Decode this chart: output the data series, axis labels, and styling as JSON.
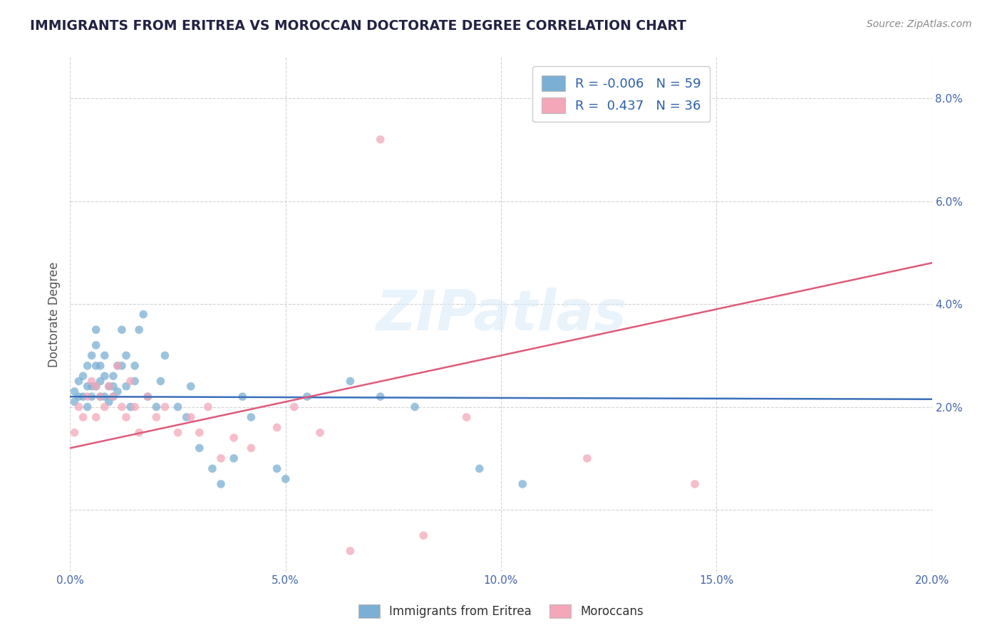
{
  "title": "IMMIGRANTS FROM ERITREA VS MOROCCAN DOCTORATE DEGREE CORRELATION CHART",
  "source_text": "Source: ZipAtlas.com",
  "ylabel": "Doctorate Degree",
  "xlim": [
    0.0,
    0.2
  ],
  "ylim": [
    -0.012,
    0.088
  ],
  "xticks": [
    0.0,
    0.05,
    0.1,
    0.15,
    0.2
  ],
  "xticklabels": [
    "0.0%",
    "5.0%",
    "10.0%",
    "15.0%",
    "20.0%"
  ],
  "yticks": [
    0.0,
    0.02,
    0.04,
    0.06,
    0.08
  ],
  "yticklabels": [
    "",
    "2.0%",
    "4.0%",
    "6.0%",
    "8.0%"
  ],
  "blue_color": "#7bafd4",
  "pink_color": "#f4a7b9",
  "blue_line_color": "#3a6fba",
  "pink_line_color": "#e05a7a",
  "legend_r_blue": "-0.006",
  "legend_n_blue": "59",
  "legend_r_pink": "0.437",
  "legend_n_pink": "36",
  "background_color": "#ffffff",
  "legend_text_color": "#2b5fa8",
  "title_color": "#222244",
  "grid_color": "#c8c8c8",
  "tick_color": "#4466aa",
  "bottom_legend_labels": [
    "Immigrants from Eritrea",
    "Moroccans"
  ],
  "blue_scatter_x": [
    0.001,
    0.001,
    0.002,
    0.002,
    0.003,
    0.003,
    0.004,
    0.004,
    0.004,
    0.005,
    0.005,
    0.005,
    0.006,
    0.006,
    0.006,
    0.006,
    0.007,
    0.007,
    0.007,
    0.008,
    0.008,
    0.008,
    0.009,
    0.009,
    0.01,
    0.01,
    0.01,
    0.011,
    0.011,
    0.012,
    0.012,
    0.013,
    0.013,
    0.014,
    0.015,
    0.015,
    0.016,
    0.017,
    0.018,
    0.02,
    0.021,
    0.022,
    0.025,
    0.027,
    0.028,
    0.03,
    0.033,
    0.035,
    0.038,
    0.04,
    0.042,
    0.048,
    0.05,
    0.055,
    0.065,
    0.072,
    0.08,
    0.095,
    0.105
  ],
  "blue_scatter_y": [
    0.023,
    0.021,
    0.025,
    0.022,
    0.026,
    0.022,
    0.028,
    0.024,
    0.02,
    0.03,
    0.024,
    0.022,
    0.035,
    0.032,
    0.028,
    0.024,
    0.028,
    0.025,
    0.022,
    0.03,
    0.026,
    0.022,
    0.024,
    0.021,
    0.026,
    0.024,
    0.022,
    0.028,
    0.023,
    0.035,
    0.028,
    0.03,
    0.024,
    0.02,
    0.028,
    0.025,
    0.035,
    0.038,
    0.022,
    0.02,
    0.025,
    0.03,
    0.02,
    0.018,
    0.024,
    0.012,
    0.008,
    0.005,
    0.01,
    0.022,
    0.018,
    0.008,
    0.006,
    0.022,
    0.025,
    0.022,
    0.02,
    0.008,
    0.005
  ],
  "pink_scatter_x": [
    0.001,
    0.002,
    0.003,
    0.004,
    0.005,
    0.006,
    0.006,
    0.007,
    0.008,
    0.009,
    0.01,
    0.011,
    0.012,
    0.013,
    0.014,
    0.015,
    0.016,
    0.018,
    0.02,
    0.022,
    0.025,
    0.028,
    0.03,
    0.032,
    0.035,
    0.038,
    0.042,
    0.048,
    0.052,
    0.058,
    0.065,
    0.072,
    0.082,
    0.092,
    0.12,
    0.145
  ],
  "pink_scatter_y": [
    0.015,
    0.02,
    0.018,
    0.022,
    0.025,
    0.018,
    0.024,
    0.022,
    0.02,
    0.024,
    0.022,
    0.028,
    0.02,
    0.018,
    0.025,
    0.02,
    0.015,
    0.022,
    0.018,
    0.02,
    0.015,
    0.018,
    0.015,
    0.02,
    0.01,
    0.014,
    0.012,
    0.016,
    0.02,
    0.015,
    -0.008,
    0.072,
    -0.005,
    0.018,
    0.01,
    0.005
  ],
  "blue_line_x": [
    0.0,
    0.2
  ],
  "blue_line_y": [
    0.022,
    0.0215
  ],
  "pink_line_x": [
    0.0,
    0.2
  ],
  "pink_line_y": [
    0.012,
    0.048
  ]
}
